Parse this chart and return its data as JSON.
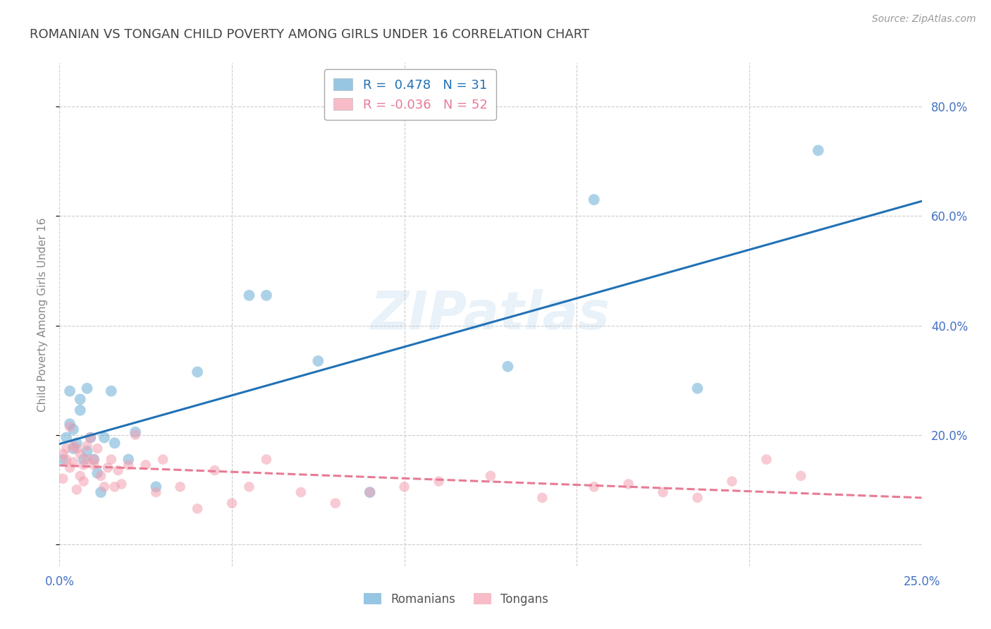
{
  "title": "ROMANIAN VS TONGAN CHILD POVERTY AMONG GIRLS UNDER 16 CORRELATION CHART",
  "source": "Source: ZipAtlas.com",
  "ylabel": "Child Poverty Among Girls Under 16",
  "watermark": "ZIPatlas",
  "xlim": [
    0.0,
    0.25
  ],
  "ylim": [
    -0.04,
    0.88
  ],
  "xticks": [
    0.0,
    0.05,
    0.1,
    0.15,
    0.2,
    0.25
  ],
  "xticklabels": [
    "0.0%",
    "",
    "",
    "",
    "",
    "25.0%"
  ],
  "yticks": [
    0.0,
    0.2,
    0.4,
    0.6,
    0.8
  ],
  "yticklabels": [
    "",
    "20.0%",
    "40.0%",
    "60.0%",
    "80.0%"
  ],
  "legend_blue_r": "0.478",
  "legend_blue_n": "31",
  "legend_pink_r": "-0.036",
  "legend_pink_n": "52",
  "blue_color": "#6baed6",
  "pink_color": "#f4a0b0",
  "trend_blue_color": "#2171b5",
  "trend_pink_color": "#e87a95",
  "grid_color": "#cccccc",
  "title_color": "#444444",
  "axis_color": "#4472c4",
  "right_axis_color": "#4472c4",
  "romanians_x": [
    0.001,
    0.002,
    0.003,
    0.003,
    0.004,
    0.004,
    0.005,
    0.006,
    0.006,
    0.007,
    0.008,
    0.008,
    0.009,
    0.01,
    0.011,
    0.012,
    0.013,
    0.015,
    0.016,
    0.02,
    0.022,
    0.028,
    0.04,
    0.055,
    0.06,
    0.075,
    0.09,
    0.13,
    0.155,
    0.185,
    0.22
  ],
  "romanians_y": [
    0.155,
    0.195,
    0.22,
    0.28,
    0.175,
    0.21,
    0.185,
    0.265,
    0.245,
    0.155,
    0.17,
    0.285,
    0.195,
    0.155,
    0.13,
    0.095,
    0.195,
    0.28,
    0.185,
    0.155,
    0.205,
    0.105,
    0.315,
    0.455,
    0.455,
    0.335,
    0.095,
    0.325,
    0.63,
    0.285,
    0.72
  ],
  "tongans_x": [
    0.001,
    0.001,
    0.002,
    0.002,
    0.003,
    0.003,
    0.004,
    0.004,
    0.005,
    0.005,
    0.006,
    0.006,
    0.007,
    0.007,
    0.008,
    0.008,
    0.009,
    0.01,
    0.01,
    0.011,
    0.012,
    0.013,
    0.014,
    0.015,
    0.016,
    0.017,
    0.018,
    0.02,
    0.022,
    0.025,
    0.028,
    0.03,
    0.035,
    0.04,
    0.045,
    0.05,
    0.055,
    0.06,
    0.07,
    0.08,
    0.09,
    0.1,
    0.11,
    0.125,
    0.14,
    0.155,
    0.165,
    0.175,
    0.185,
    0.195,
    0.205,
    0.215
  ],
  "tongans_y": [
    0.165,
    0.12,
    0.175,
    0.155,
    0.215,
    0.14,
    0.18,
    0.15,
    0.175,
    0.1,
    0.125,
    0.165,
    0.145,
    0.115,
    0.155,
    0.18,
    0.195,
    0.155,
    0.145,
    0.175,
    0.125,
    0.105,
    0.14,
    0.155,
    0.105,
    0.135,
    0.11,
    0.145,
    0.2,
    0.145,
    0.095,
    0.155,
    0.105,
    0.065,
    0.135,
    0.075,
    0.105,
    0.155,
    0.095,
    0.075,
    0.095,
    0.105,
    0.115,
    0.125,
    0.085,
    0.105,
    0.11,
    0.095,
    0.085,
    0.115,
    0.155,
    0.125
  ],
  "marker_size_blue": 130,
  "marker_size_pink": 110,
  "background_color": "#ffffff"
}
